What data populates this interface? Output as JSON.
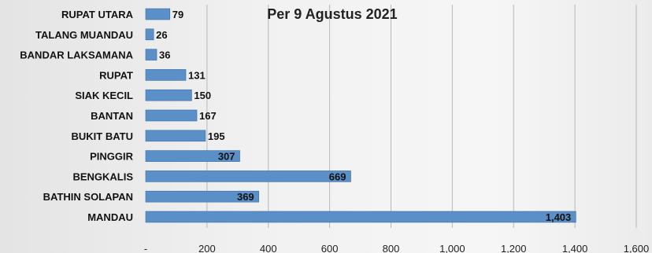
{
  "chart_data": {
    "type": "bar",
    "orientation": "horizontal",
    "title": "Per 9 Agustus 2021",
    "categories": [
      "RUPAT UTARA",
      "TALANG MUANDAU",
      "BANDAR LAKSAMANA",
      "RUPAT",
      "SIAK KECIL",
      "BANTAN",
      "BUKIT BATU",
      "PINGGIR",
      "BENGKALIS",
      "BATHIN SOLAPAN",
      "MANDAU"
    ],
    "values": [
      79,
      26,
      36,
      131,
      150,
      167,
      195,
      307,
      669,
      369,
      1403
    ],
    "value_labels": [
      "79",
      "26",
      "36",
      "131",
      "150",
      "167",
      "195",
      "307",
      "669",
      "369",
      "1,403"
    ],
    "xlim": [
      0,
      1600
    ],
    "x_ticks": [
      0,
      200,
      400,
      600,
      800,
      1000,
      1200,
      1400,
      1600
    ],
    "x_tick_labels": [
      "-",
      "200",
      "400",
      "600",
      "800",
      "1,000",
      "1,200",
      "1,400",
      "1,600"
    ],
    "xlabel": "",
    "ylabel": "",
    "grid": true,
    "bar_color": "#5b8fc7"
  }
}
